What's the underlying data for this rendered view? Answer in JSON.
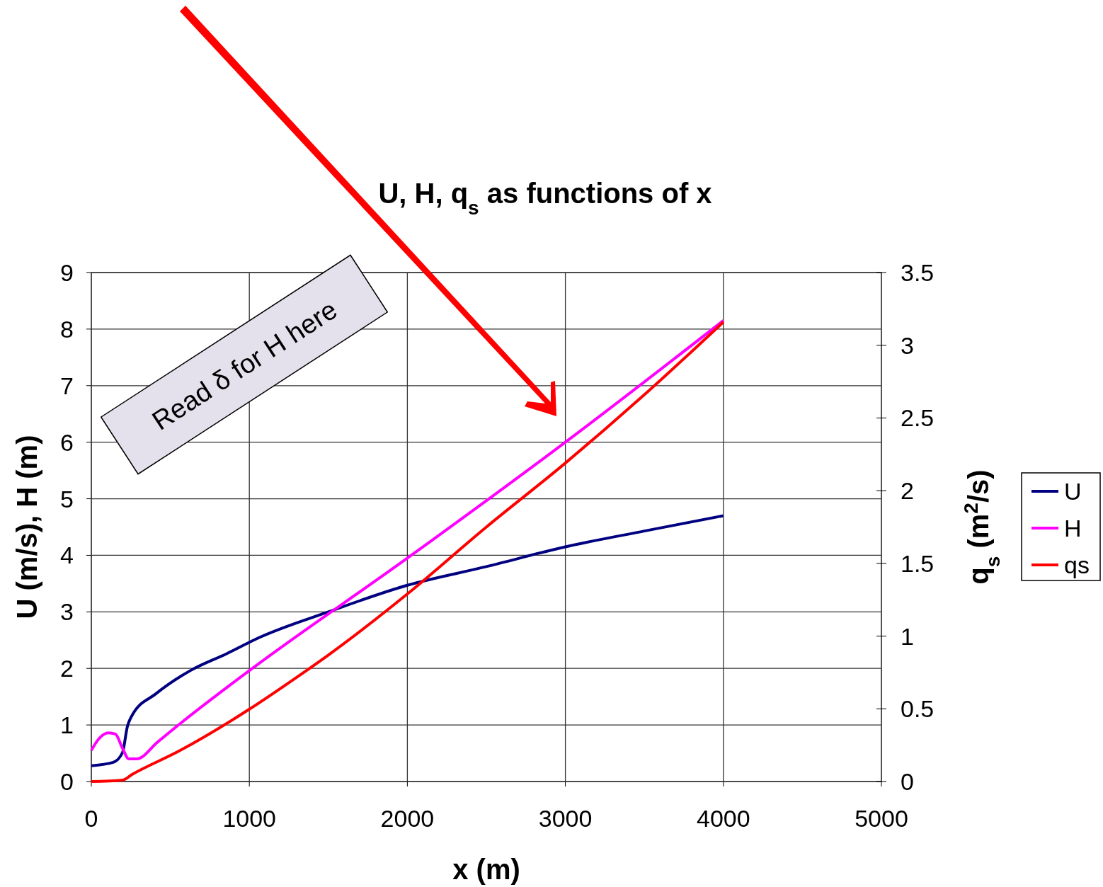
{
  "chart_data": {
    "type": "line",
    "title": "U, H, q$_{s}$ as functions of x",
    "xlabel": "x (m)",
    "ylabel": "U (m/s), H (m)",
    "y2label": "q$_{s}$ (m$^{2}$/s)",
    "xlim": [
      0,
      5000
    ],
    "xticks": [
      0,
      1000,
      2000,
      3000,
      4000,
      5000
    ],
    "ylim": [
      0,
      9
    ],
    "yticks": [
      0,
      1,
      2,
      3,
      4,
      5,
      6,
      7,
      8,
      9
    ],
    "y2lim": [
      0,
      3.5
    ],
    "y2ticks": [
      0,
      0.5,
      1,
      1.5,
      2,
      2.5,
      3,
      3.5
    ],
    "grid": true,
    "legend": "right",
    "line_style": "solid",
    "annotations": [
      "Read δ for H here"
    ],
    "series": [
      {
        "name": "U",
        "color": "#000080",
        "x": [
          0,
          139,
          197,
          228,
          260,
          408,
          632,
          856,
          1066,
          1500,
          2000,
          2500,
          3000,
          3500,
          4000
        ],
        "values": [
          0.28,
          0.34,
          0.51,
          0.97,
          1.18,
          1.55,
          1.97,
          2.26,
          2.55,
          3.0,
          3.47,
          3.8,
          4.15,
          4.43,
          4.7
        ]
      },
      {
        "name": "H",
        "color": "#ff00ff",
        "x": [
          0,
          49,
          108,
          152,
          197,
          237,
          287,
          420,
          556,
          1004,
          2000,
          3000,
          4000
        ],
        "values": [
          0.55,
          0.76,
          0.86,
          0.84,
          0.59,
          0.4,
          0.4,
          0.7,
          1.01,
          1.97,
          3.95,
          6.0,
          8.15
        ]
      },
      {
        "name": "qs",
        "color": "#ff0000",
        "axis": "y2",
        "x": [
          0,
          197,
          260,
          556,
          1004,
          1304,
          1500,
          2000,
          2500,
          3000,
          3500,
          4000
        ],
        "values": [
          0,
          0.01,
          0.05,
          0.21,
          0.5,
          0.72,
          0.87,
          1.29,
          1.75,
          2.19,
          2.66,
          3.16
        ]
      }
    ]
  }
}
